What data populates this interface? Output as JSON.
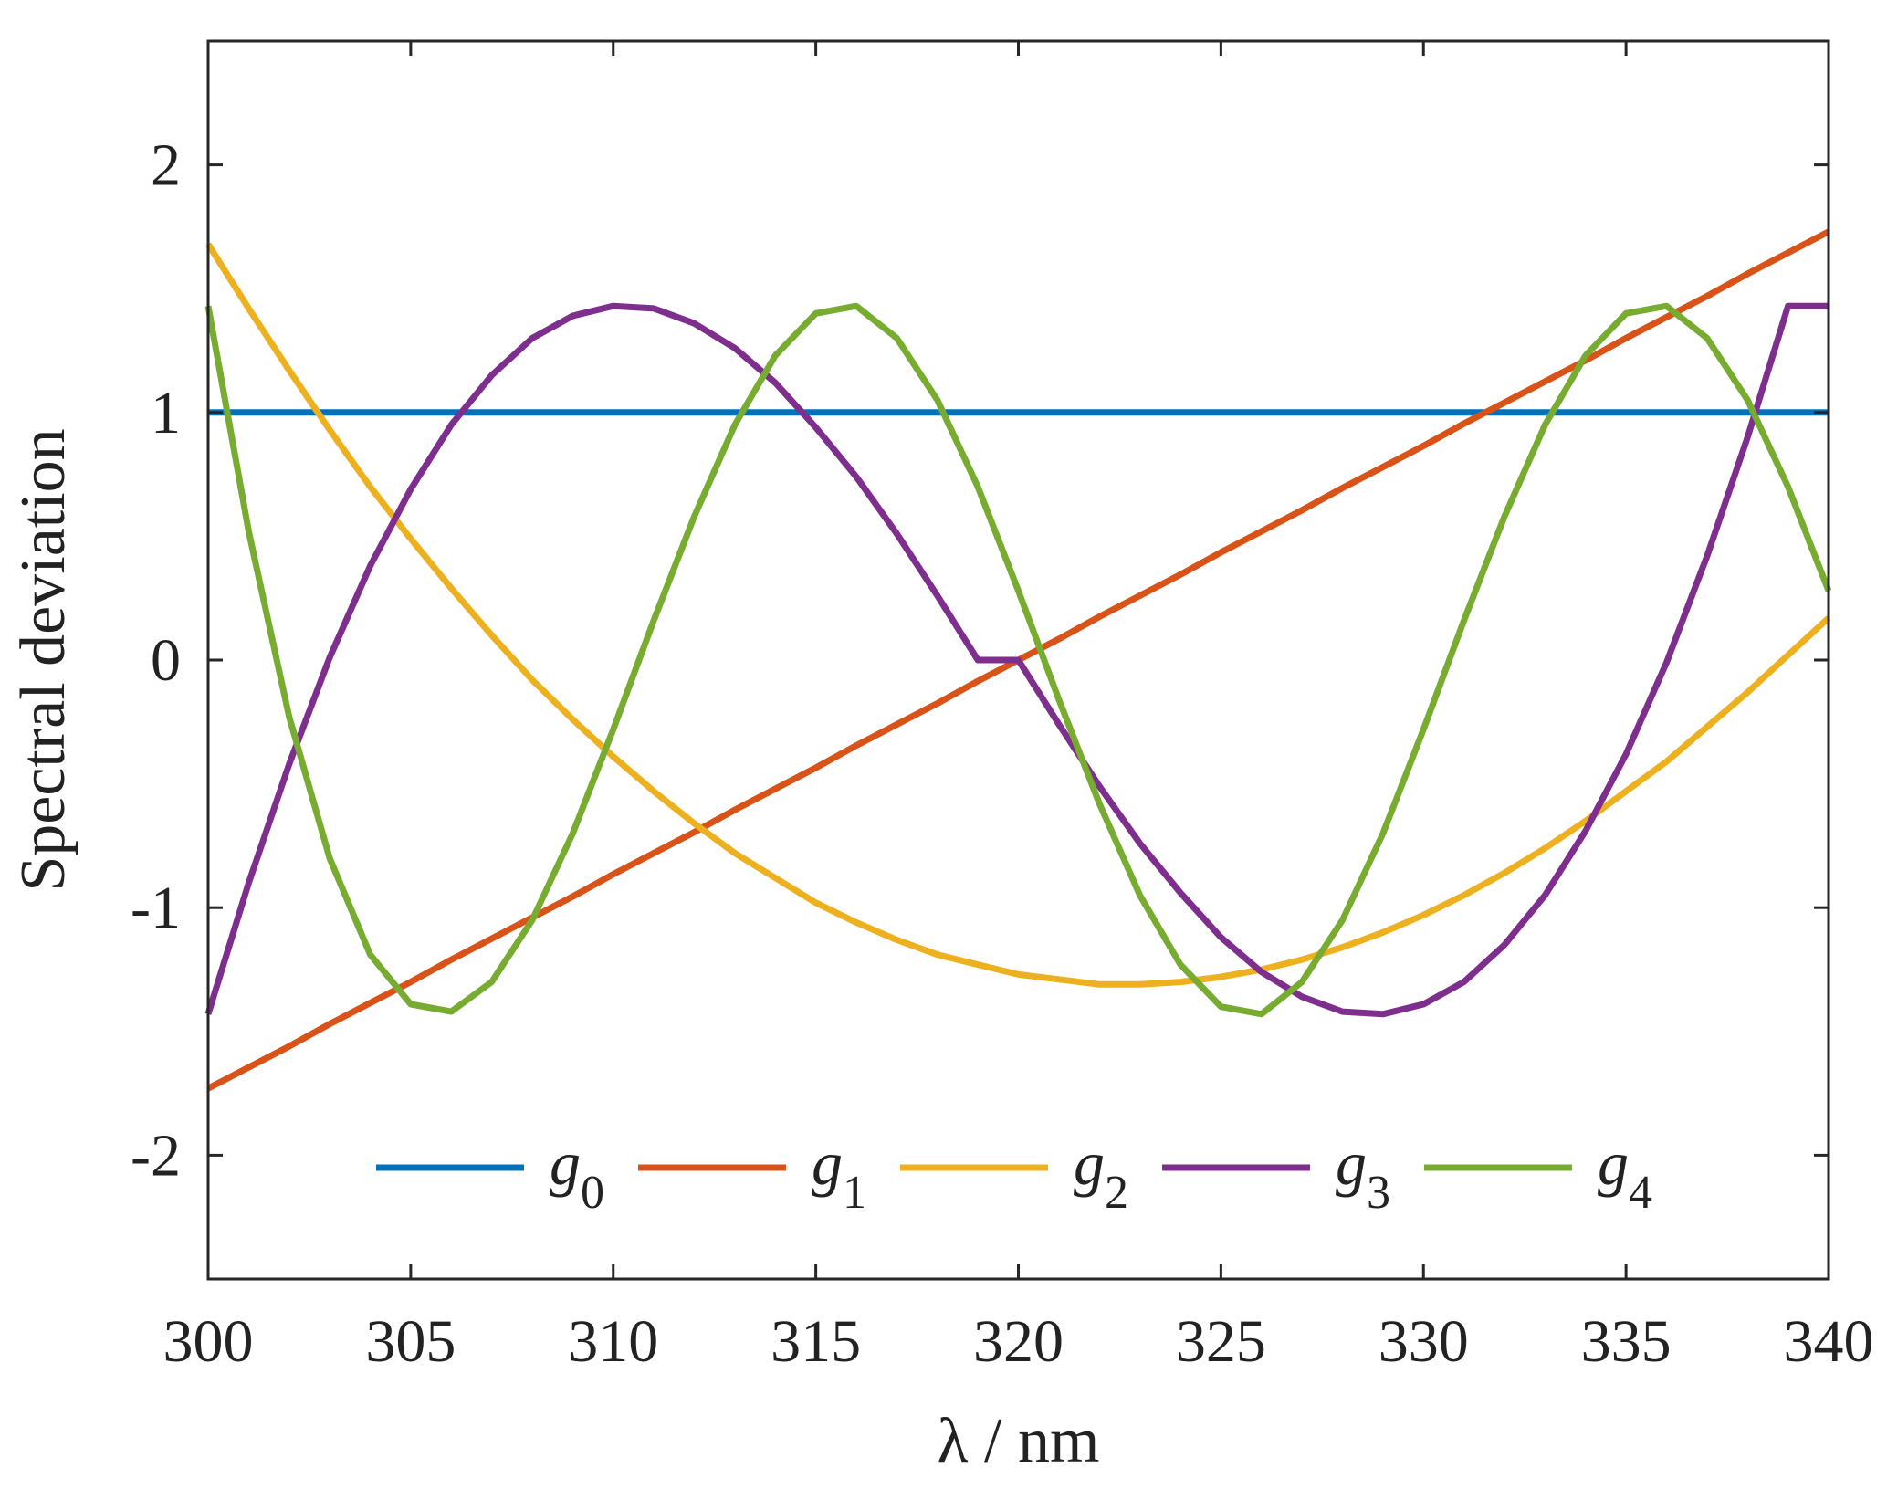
{
  "chart_data": {
    "type": "line",
    "xlabel": "λ / nm",
    "ylabel": "Spectral deviation",
    "xlim": [
      300,
      340
    ],
    "ylim": [
      -2.5,
      2.5
    ],
    "x_ticks": [
      "300",
      "305",
      "310",
      "315",
      "320",
      "325",
      "330",
      "335",
      "340"
    ],
    "y_ticks": [
      "2",
      "1",
      "0",
      "-1",
      "-2"
    ],
    "grid": false,
    "legend_position": "bottom",
    "x": [
      300,
      301,
      302,
      303,
      304,
      305,
      306,
      307,
      308,
      309,
      310,
      311,
      312,
      313,
      314,
      315,
      316,
      317,
      318,
      319,
      320,
      321,
      322,
      323,
      324,
      325,
      326,
      327,
      328,
      329,
      330,
      331,
      332,
      333,
      334,
      335,
      336,
      337,
      338,
      339,
      340
    ],
    "series": [
      {
        "name": "g",
        "subscript": "0",
        "color": "#0072BD",
        "values": [
          1.0,
          1.0,
          1.0,
          1.0,
          1.0,
          1.0,
          1.0,
          1.0,
          1.0,
          1.0,
          1.0,
          1.0,
          1.0,
          1.0,
          1.0,
          1.0,
          1.0,
          1.0,
          1.0,
          1.0,
          1.0,
          1.0,
          1.0,
          1.0,
          1.0,
          1.0,
          1.0,
          1.0,
          1.0,
          1.0,
          1.0,
          1.0,
          1.0,
          1.0,
          1.0,
          1.0,
          1.0,
          1.0,
          1.0,
          1.0,
          1.0
        ]
      },
      {
        "name": "g",
        "subscript": "1",
        "color": "#D95319",
        "values": [
          -1.73,
          -1.645,
          -1.56,
          -1.47,
          -1.385,
          -1.3,
          -1.21,
          -1.125,
          -1.04,
          -0.955,
          -0.865,
          -0.78,
          -0.695,
          -0.605,
          -0.52,
          -0.435,
          -0.345,
          -0.26,
          -0.175,
          -0.085,
          0.0,
          0.085,
          0.175,
          0.26,
          0.345,
          0.435,
          0.52,
          0.605,
          0.695,
          0.78,
          0.865,
          0.955,
          1.04,
          1.125,
          1.21,
          1.3,
          1.385,
          1.47,
          1.56,
          1.645,
          1.73
        ]
      },
      {
        "name": "g",
        "subscript": "2",
        "color": "#EDB120",
        "values": [
          1.68,
          1.42,
          1.17,
          0.93,
          0.7,
          0.49,
          0.29,
          0.1,
          -0.08,
          -0.24,
          -0.39,
          -0.53,
          -0.66,
          -0.78,
          -0.88,
          -0.98,
          -1.06,
          -1.13,
          -1.19,
          -1.23,
          -1.27,
          -1.29,
          -1.31,
          -1.31,
          -1.3,
          -1.28,
          -1.25,
          -1.21,
          -1.16,
          -1.1,
          -1.03,
          -0.95,
          -0.86,
          -0.76,
          -0.65,
          -0.53,
          -0.41,
          -0.27,
          -0.13,
          0.02,
          0.17
        ]
      },
      {
        "name": "g",
        "subscript": "3",
        "color": "#7E2F8E",
        "values": [
          -1.43,
          -0.9,
          -0.42,
          0.01,
          0.38,
          0.69,
          0.95,
          1.15,
          1.3,
          1.39,
          1.43,
          1.42,
          1.36,
          1.26,
          1.12,
          0.94,
          0.74,
          0.51,
          0.26,
          0.0,
          0.0,
          -0.26,
          -0.51,
          -0.74,
          -0.94,
          -1.12,
          -1.26,
          -1.36,
          -1.42,
          -1.43,
          -1.39,
          -1.3,
          -1.15,
          -0.95,
          -0.69,
          -0.38,
          -0.01,
          0.42,
          0.9,
          1.43,
          1.43
        ]
      },
      {
        "name": "g",
        "subscript": "4",
        "color": "#77AC30",
        "values": [
          1.43,
          0.52,
          -0.23,
          -0.8,
          -1.19,
          -1.39,
          -1.42,
          -1.3,
          -1.05,
          -0.7,
          -0.28,
          0.16,
          0.58,
          0.95,
          1.23,
          1.4,
          1.43,
          1.3,
          1.05,
          0.7,
          0.28,
          -0.16,
          -0.58,
          -0.95,
          -1.23,
          -1.4,
          -1.43,
          -1.3,
          -1.05,
          -0.7,
          -0.28,
          0.16,
          0.58,
          0.95,
          1.23,
          1.4,
          1.43,
          1.3,
          1.05,
          0.7,
          0.28
        ]
      }
    ]
  }
}
